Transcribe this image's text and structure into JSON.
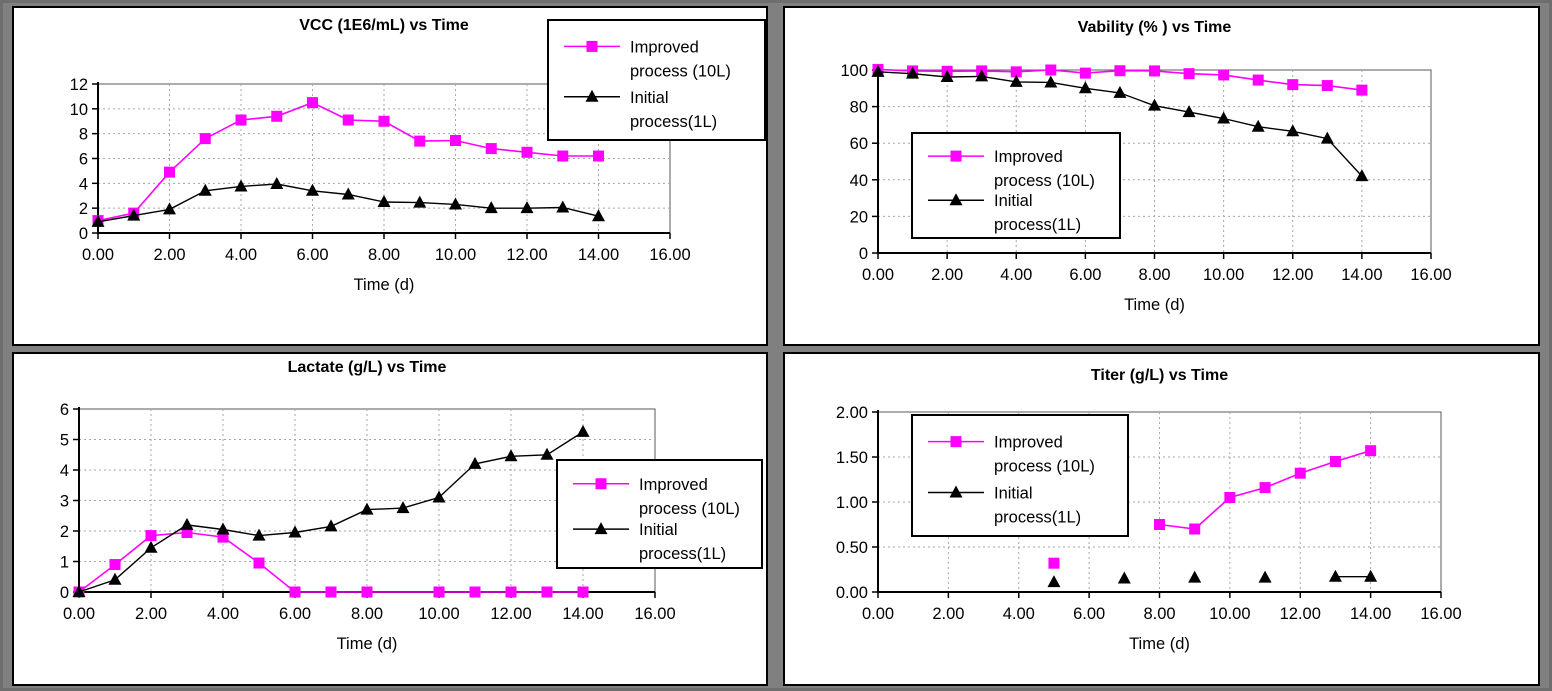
{
  "workspace": {
    "description": "Four bioprocess comparison charts (2x2 grid)",
    "background_color": "#808080",
    "panel_background": "#ffffff"
  },
  "palette": {
    "improved": "#FF00FF",
    "initial": "#000000",
    "gridline": "#a6a6a6",
    "plot_border": "#595959"
  },
  "chart_data": [
    {
      "id": "vcc",
      "type": "line",
      "title": "VCC (1E6/mL) vs Time",
      "xlabel": "Time (d)",
      "ylabel": "",
      "xlim": [
        0,
        16
      ],
      "ylim": [
        0,
        12
      ],
      "xticks": [
        0,
        2,
        4,
        6,
        8,
        10,
        12,
        14,
        16
      ],
      "xtick_labels": [
        "0.00",
        "2.00",
        "4.00",
        "6.00",
        "8.00",
        "10.00",
        "12.00",
        "14.00",
        "16.00"
      ],
      "yticks": [
        0,
        2,
        4,
        6,
        8,
        10,
        12
      ],
      "ytick_labels": [
        "0",
        "2",
        "4",
        "6",
        "8",
        "10",
        "12"
      ],
      "grid": true,
      "legend_position": "top-right",
      "series": [
        {
          "name": "Improved process (10L)",
          "color_key": "improved",
          "marker": "square",
          "points": [
            [
              0,
              1.0
            ],
            [
              1,
              1.6
            ],
            [
              2,
              4.9
            ],
            [
              3,
              7.6
            ],
            [
              4,
              9.1
            ],
            [
              5,
              9.4
            ],
            [
              6,
              10.5
            ],
            [
              7,
              9.1
            ],
            [
              8,
              9.0
            ],
            [
              9,
              7.4
            ],
            [
              10,
              7.45
            ],
            [
              11,
              6.8
            ],
            [
              12,
              6.5
            ],
            [
              13,
              6.2
            ],
            [
              14,
              6.2
            ]
          ],
          "segments": [
            [
              0,
              14
            ]
          ]
        },
        {
          "name": "Initial process(1L)",
          "color_key": "initial",
          "marker": "triangle",
          "points": [
            [
              0,
              0.9
            ],
            [
              1,
              1.4
            ],
            [
              2,
              1.9
            ],
            [
              3,
              3.4
            ],
            [
              4,
              3.75
            ],
            [
              5,
              3.95
            ],
            [
              6,
              3.4
            ],
            [
              7,
              3.1
            ],
            [
              8,
              2.5
            ],
            [
              9,
              2.45
            ],
            [
              10,
              2.3
            ],
            [
              11,
              2.0
            ],
            [
              12,
              2.0
            ],
            [
              13,
              2.05
            ],
            [
              14,
              1.35
            ]
          ],
          "segments": [
            [
              0,
              14
            ]
          ]
        }
      ],
      "legend_entries": [
        {
          "label_lines": [
            "Improved",
            "process (10L)"
          ],
          "series": "Improved process (10L)"
        },
        {
          "label_lines": [
            "Initial",
            "process(1L)"
          ],
          "series": "Initial process(1L)"
        }
      ]
    },
    {
      "id": "viability",
      "type": "line",
      "title": "Vability (% ) vs Time",
      "xlabel": "Time (d)",
      "ylabel": "",
      "xlim": [
        0,
        16
      ],
      "ylim": [
        0,
        100
      ],
      "xticks": [
        0,
        2,
        4,
        6,
        8,
        10,
        12,
        14,
        16
      ],
      "xtick_labels": [
        "0.00",
        "2.00",
        "4.00",
        "6.00",
        "8.00",
        "10.00",
        "12.00",
        "14.00",
        "16.00"
      ],
      "yticks": [
        0,
        20,
        40,
        60,
        80,
        100
      ],
      "ytick_labels": [
        "0",
        "20",
        "40",
        "60",
        "80",
        "100"
      ],
      "grid": true,
      "legend_position": "middle-left",
      "series": [
        {
          "name": "Improved process (10L)",
          "color_key": "improved",
          "marker": "square",
          "points": [
            [
              0,
              100.3
            ],
            [
              1,
              99.5
            ],
            [
              2,
              99.3
            ],
            [
              3,
              99.5
            ],
            [
              4,
              99.0
            ],
            [
              5,
              100.0
            ],
            [
              6,
              98.3
            ],
            [
              7,
              99.6
            ],
            [
              8,
              99.5
            ],
            [
              9,
              98.0
            ],
            [
              10,
              97.3
            ],
            [
              11,
              94.5
            ],
            [
              12,
              92.0
            ],
            [
              13,
              91.5
            ],
            [
              14,
              89.0
            ]
          ],
          "segments": [
            [
              0,
              14
            ]
          ]
        },
        {
          "name": "Initial process(1L)",
          "color_key": "initial",
          "marker": "triangle",
          "points": [
            [
              0,
              99.0
            ],
            [
              1,
              98.0
            ],
            [
              2,
              96.2
            ],
            [
              3,
              96.5
            ],
            [
              4,
              93.5
            ],
            [
              5,
              93.2
            ],
            [
              6,
              90.0
            ],
            [
              7,
              87.5
            ],
            [
              8,
              80.5
            ],
            [
              9,
              77.0
            ],
            [
              10,
              73.5
            ],
            [
              11,
              69.0
            ],
            [
              12,
              66.5
            ],
            [
              13,
              62.5
            ],
            [
              14,
              42.0
            ]
          ],
          "segments": [
            [
              0,
              14
            ]
          ]
        }
      ],
      "legend_entries": [
        {
          "label_lines": [
            "Improved",
            "process (10L)"
          ],
          "series": "Improved process (10L)"
        },
        {
          "label_lines": [
            "Initial",
            "process(1L)"
          ],
          "series": "Initial process(1L)"
        }
      ]
    },
    {
      "id": "lactate",
      "type": "line",
      "title": "Lactate (g/L) vs Time",
      "xlabel": "Time (d)",
      "ylabel": "",
      "xlim": [
        0,
        16
      ],
      "ylim": [
        0,
        6
      ],
      "xticks": [
        0,
        2,
        4,
        6,
        8,
        10,
        12,
        14,
        16
      ],
      "xtick_labels": [
        "0.00",
        "2.00",
        "4.00",
        "6.00",
        "8.00",
        "10.00",
        "12.00",
        "14.00",
        "16.00"
      ],
      "yticks": [
        0,
        1,
        2,
        3,
        4,
        5,
        6
      ],
      "ytick_labels": [
        "0",
        "1",
        "2",
        "3",
        "4",
        "5",
        "6"
      ],
      "grid": true,
      "legend_position": "middle-right",
      "series": [
        {
          "name": "Improved process (10L)",
          "color_key": "improved",
          "marker": "square",
          "points": [
            [
              0,
              0
            ],
            [
              1,
              0.9
            ],
            [
              2,
              1.85
            ],
            [
              3,
              1.95
            ],
            [
              4,
              1.8
            ],
            [
              5,
              0.95
            ],
            [
              6,
              0
            ],
            [
              7,
              0
            ],
            [
              8,
              0
            ],
            [
              10,
              0
            ],
            [
              11,
              0
            ],
            [
              12,
              0
            ],
            [
              13,
              0
            ],
            [
              14,
              0
            ]
          ],
          "segments": [
            [
              0,
              13
            ]
          ]
        },
        {
          "name": "Initial process(1L)",
          "color_key": "initial",
          "marker": "triangle",
          "points": [
            [
              0,
              0
            ],
            [
              1,
              0.4
            ],
            [
              2,
              1.45
            ],
            [
              3,
              2.2
            ],
            [
              4,
              2.05
            ],
            [
              5,
              1.85
            ],
            [
              6,
              1.95
            ],
            [
              7,
              2.15
            ],
            [
              8,
              2.7
            ],
            [
              9,
              2.75
            ],
            [
              10,
              3.1
            ],
            [
              11,
              4.2
            ],
            [
              12,
              4.45
            ],
            [
              13,
              4.5
            ],
            [
              14,
              5.25
            ]
          ],
          "segments": [
            [
              0,
              14
            ]
          ]
        }
      ],
      "legend_entries": [
        {
          "label_lines": [
            "Improved",
            "process (10L)"
          ],
          "series": "Improved process (10L)"
        },
        {
          "label_lines": [
            "Initial",
            "process(1L)"
          ],
          "series": "Initial process(1L)"
        }
      ]
    },
    {
      "id": "titer",
      "type": "line",
      "title": "Titer (g/L) vs Time",
      "xlabel": "Time (d)",
      "ylabel": "",
      "xlim": [
        0,
        16
      ],
      "ylim": [
        0,
        2
      ],
      "xticks": [
        0,
        2,
        4,
        6,
        8,
        10,
        12,
        14,
        16
      ],
      "xtick_labels": [
        "0.00",
        "2.00",
        "4.00",
        "6.00",
        "8.00",
        "10.00",
        "12.00",
        "14.00",
        "16.00"
      ],
      "yticks": [
        0,
        0.5,
        1.0,
        1.5,
        2.0
      ],
      "ytick_labels": [
        "0.00",
        "0.50",
        "1.00",
        "1.50",
        "2.00"
      ],
      "grid": true,
      "legend_position": "top-left",
      "series": [
        {
          "name": "Improved process (10L)",
          "color_key": "improved",
          "marker": "square",
          "points": [
            [
              5,
              0.32
            ],
            [
              8,
              0.75
            ],
            [
              9,
              0.7
            ],
            [
              10,
              1.05
            ],
            [
              11,
              1.16
            ],
            [
              12,
              1.32
            ],
            [
              13,
              1.45
            ],
            [
              14,
              1.57
            ]
          ],
          "segments": [
            [
              1,
              7
            ]
          ]
        },
        {
          "name": "Initial process(1L)",
          "color_key": "initial",
          "marker": "triangle",
          "points": [
            [
              5,
              0.11
            ],
            [
              7,
              0.15
            ],
            [
              9,
              0.16
            ],
            [
              11,
              0.16
            ],
            [
              13,
              0.17
            ],
            [
              14,
              0.17
            ]
          ],
          "segments": [
            [
              4,
              5
            ]
          ]
        }
      ],
      "legend_entries": [
        {
          "label_lines": [
            "Improved",
            "process (10L)"
          ],
          "series": "Improved process (10L)"
        },
        {
          "label_lines": [
            "Initial",
            "process(1L)"
          ],
          "series": "Initial process(1L)"
        }
      ]
    }
  ]
}
